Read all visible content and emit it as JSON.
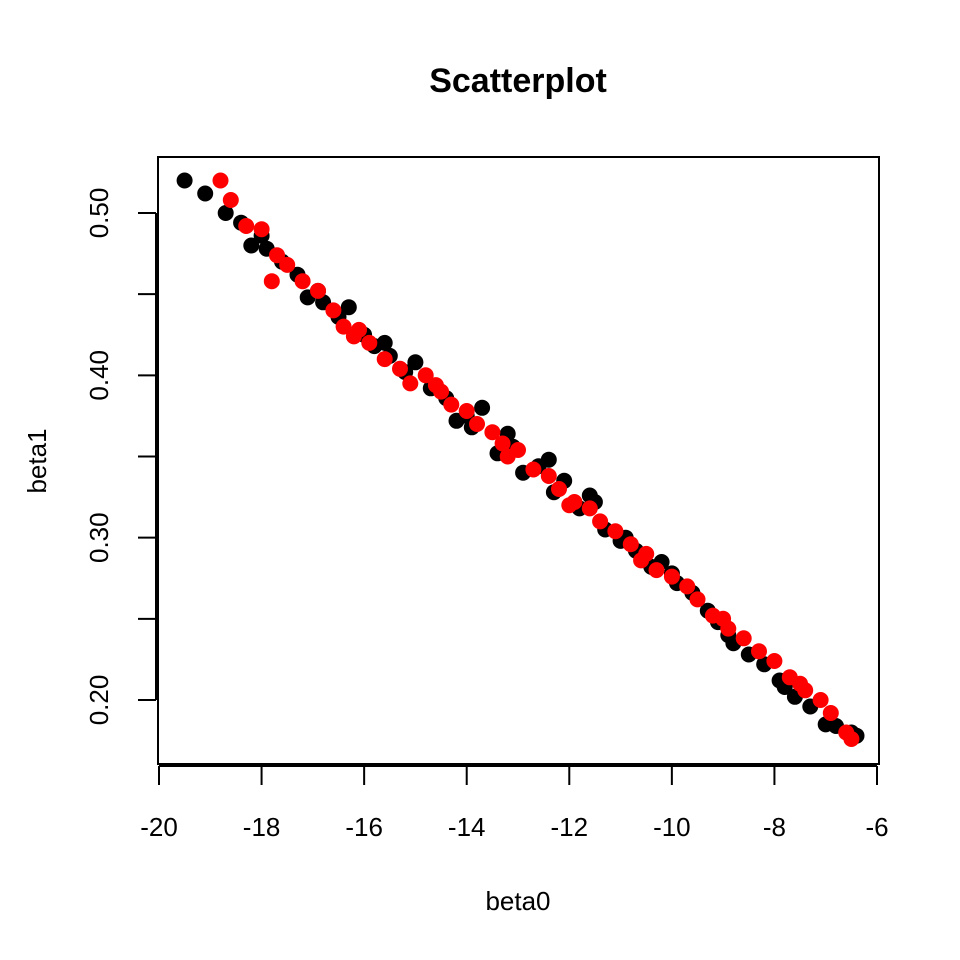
{
  "chart_data": {
    "type": "scatter",
    "title": "Scatterplot",
    "xlabel": "beta0",
    "ylabel": "beta1",
    "xlim": [
      -20,
      -6
    ],
    "ylim": [
      0.17,
      0.52
    ],
    "x_ticks": [
      -20,
      -18,
      -16,
      -14,
      -12,
      -10,
      -8,
      -6
    ],
    "x_tick_labels": [
      "-20",
      "-18",
      "-16",
      "-14",
      "-12",
      "-10",
      "-8",
      "-6"
    ],
    "y_ticks": [
      0.2,
      0.25,
      0.3,
      0.35,
      0.4,
      0.45,
      0.5
    ],
    "y_tick_labels": [
      "0.20",
      "",
      "0.30",
      "",
      "0.40",
      "",
      "0.50"
    ],
    "grid": false,
    "legend": "none",
    "colors": [
      "#000000",
      "#ff0000"
    ],
    "series": [
      {
        "color": "#000000",
        "x": [
          -19.5,
          -19.1,
          -18.7,
          -18.4,
          -18.2,
          -17.9,
          -17.6,
          -17.3,
          -17.1,
          -16.8,
          -16.5,
          -16.3,
          -16.0,
          -15.8,
          -15.5,
          -15.2,
          -15.0,
          -14.7,
          -14.4,
          -14.2,
          -13.9,
          -13.7,
          -13.4,
          -13.1,
          -12.9,
          -12.6,
          -12.3,
          -12.1,
          -11.8,
          -11.5,
          -11.3,
          -11.0,
          -10.7,
          -10.4,
          -10.2,
          -9.9,
          -9.6,
          -9.3,
          -9.1,
          -8.8,
          -8.5,
          -8.2,
          -7.9,
          -7.6,
          -7.3,
          -7.0,
          -6.8,
          -6.5,
          -6.4,
          -18.0,
          -16.9,
          -15.6,
          -14.0,
          -13.2,
          -12.4,
          -11.6,
          -10.9,
          -10.0,
          -8.9,
          -7.8
        ],
        "y": [
          0.52,
          0.512,
          0.5,
          0.494,
          0.48,
          0.478,
          0.47,
          0.462,
          0.448,
          0.445,
          0.436,
          0.442,
          0.425,
          0.418,
          0.412,
          0.402,
          0.408,
          0.392,
          0.386,
          0.372,
          0.368,
          0.38,
          0.352,
          0.356,
          0.34,
          0.344,
          0.328,
          0.335,
          0.318,
          0.322,
          0.305,
          0.298,
          0.292,
          0.282,
          0.285,
          0.272,
          0.266,
          0.255,
          0.248,
          0.235,
          0.228,
          0.222,
          0.212,
          0.202,
          0.196,
          0.185,
          0.184,
          0.18,
          0.178,
          0.486,
          0.452,
          0.42,
          0.375,
          0.364,
          0.348,
          0.326,
          0.3,
          0.278,
          0.24,
          0.208
        ]
      },
      {
        "color": "#ff0000",
        "x": [
          -18.8,
          -18.6,
          -18.3,
          -18.0,
          -17.7,
          -17.5,
          -17.2,
          -16.9,
          -16.6,
          -16.4,
          -16.1,
          -15.9,
          -15.6,
          -15.3,
          -15.1,
          -14.8,
          -14.5,
          -14.3,
          -14.0,
          -13.8,
          -13.5,
          -13.2,
          -13.0,
          -12.7,
          -12.4,
          -12.2,
          -11.9,
          -11.6,
          -11.4,
          -11.1,
          -10.8,
          -10.5,
          -10.3,
          -10.0,
          -9.7,
          -9.5,
          -9.2,
          -8.9,
          -8.6,
          -8.3,
          -8.0,
          -7.7,
          -7.4,
          -7.1,
          -6.9,
          -6.6,
          -6.5,
          -17.8,
          -16.2,
          -14.6,
          -13.3,
          -12.0,
          -10.6,
          -9.0,
          -7.5
        ],
        "y": [
          0.52,
          0.508,
          0.492,
          0.49,
          0.474,
          0.468,
          0.458,
          0.452,
          0.44,
          0.43,
          0.428,
          0.42,
          0.41,
          0.404,
          0.395,
          0.4,
          0.39,
          0.382,
          0.378,
          0.37,
          0.365,
          0.35,
          0.354,
          0.342,
          0.338,
          0.33,
          0.322,
          0.318,
          0.31,
          0.304,
          0.296,
          0.29,
          0.28,
          0.276,
          0.27,
          0.262,
          0.252,
          0.244,
          0.238,
          0.23,
          0.224,
          0.214,
          0.206,
          0.2,
          0.192,
          0.18,
          0.176,
          0.458,
          0.424,
          0.394,
          0.358,
          0.32,
          0.286,
          0.25,
          0.21
        ]
      }
    ]
  }
}
